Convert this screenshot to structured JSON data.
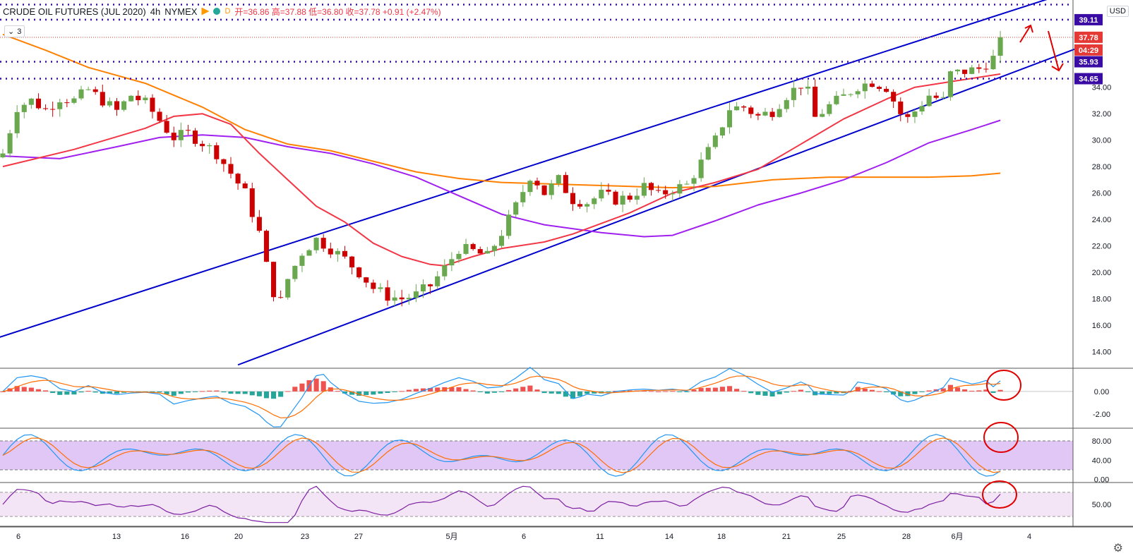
{
  "header": {
    "symbol": "CRUDE OIL FUTURES (JUL 2020)",
    "interval": "4h",
    "exchange": "NYMEX",
    "d_label": "D",
    "ohlc": "开=36.86  高=37.88  低=36.80  收=37.78  +0.91 (+2.47%)"
  },
  "indicator_count": "3",
  "currency": "USD",
  "price_labels": {
    "last_price": "37.78",
    "countdown": "04:29",
    "level_1": "39.11",
    "level_2": "35.93",
    "level_3": "34.65"
  },
  "colors": {
    "up": "#6aa84f",
    "down": "#cc0000",
    "channel": "#0000cc",
    "ma_fast": "#f23645",
    "ma_mid": "#a020f0",
    "ma_slow": "#ff8000",
    "level": "#3a0ca3",
    "annotation": "#e00000"
  },
  "chart_data": [
    {
      "type": "candlestick",
      "title": "CRUDE OIL FUTURES (JUL 2020), 4h, NYMEX",
      "x_tick_labels": [
        "6",
        "13",
        "16",
        "20",
        "23",
        "27",
        "5月",
        "6",
        "11",
        "14",
        "18",
        "21",
        "25",
        "28",
        "6月",
        "4"
      ],
      "y_ticks": [
        14.0,
        16.0,
        18.0,
        20.0,
        22.0,
        24.0,
        26.0,
        28.0,
        30.0,
        32.0,
        34.0
      ],
      "ylim": [
        12.8,
        40.6
      ],
      "close_path": [
        [
          0,
          29.0
        ],
        [
          2,
          32.5
        ],
        [
          4,
          33.0
        ],
        [
          6,
          32.3
        ],
        [
          8,
          33.2
        ],
        [
          10,
          33.0
        ],
        [
          12,
          33.8
        ],
        [
          14,
          33.0
        ],
        [
          16,
          32.2
        ],
        [
          18,
          33.4
        ],
        [
          20,
          32.8
        ],
        [
          22,
          31.5
        ],
        [
          23,
          30.8
        ],
        [
          24,
          30.2
        ],
        [
          26,
          30.5
        ],
        [
          28,
          29.8
        ],
        [
          30,
          29.0
        ],
        [
          32,
          27.5
        ],
        [
          34,
          26.0
        ],
        [
          36,
          23.0
        ],
        [
          37,
          20.5
        ],
        [
          38,
          18.5
        ],
        [
          39,
          17.8
        ],
        [
          40,
          19.5
        ],
        [
          42,
          21.5
        ],
        [
          44,
          22.5
        ],
        [
          46,
          21.8
        ],
        [
          48,
          21.0
        ],
        [
          50,
          20.0
        ],
        [
          52,
          18.8
        ],
        [
          54,
          18.2
        ],
        [
          56,
          18.0
        ],
        [
          58,
          18.3
        ],
        [
          60,
          19.0
        ],
        [
          62,
          20.3
        ],
        [
          64,
          21.8
        ],
        [
          66,
          21.6
        ],
        [
          68,
          21.2
        ],
        [
          70,
          23.0
        ],
        [
          72,
          25.0
        ],
        [
          74,
          27.3
        ],
        [
          75,
          26.8
        ],
        [
          76,
          26.0
        ],
        [
          78,
          27.0
        ],
        [
          80,
          25.5
        ],
        [
          82,
          25.3
        ],
        [
          84,
          25.9
        ],
        [
          86,
          25.5
        ],
        [
          88,
          25.7
        ],
        [
          90,
          26.5
        ],
        [
          92,
          25.8
        ],
        [
          94,
          26.3
        ],
        [
          96,
          26.6
        ],
        [
          98,
          28.3
        ],
        [
          100,
          30.0
        ],
        [
          102,
          32.4
        ],
        [
          104,
          32.5
        ],
        [
          106,
          31.8
        ],
        [
          108,
          32.2
        ],
        [
          110,
          33.4
        ],
        [
          112,
          34.2
        ],
        [
          113,
          33.6
        ],
        [
          114,
          31.7
        ],
        [
          116,
          32.6
        ],
        [
          118,
          33.3
        ],
        [
          120,
          34.1
        ],
        [
          122,
          34.4
        ],
        [
          124,
          34.0
        ],
        [
          126,
          32.0
        ],
        [
          127,
          31.6
        ],
        [
          128,
          32.2
        ],
        [
          130,
          33.4
        ],
        [
          132,
          33.0
        ],
        [
          133,
          35.0
        ],
        [
          135,
          35.2
        ],
        [
          137,
          35.4
        ],
        [
          139,
          36.2
        ],
        [
          140,
          37.8
        ]
      ],
      "ma_fast": [
        [
          0,
          28.0
        ],
        [
          10,
          29.3
        ],
        [
          20,
          30.9
        ],
        [
          24,
          31.8
        ],
        [
          28,
          32.0
        ],
        [
          32,
          31.2
        ],
        [
          36,
          29.0
        ],
        [
          40,
          27.0
        ],
        [
          44,
          25.0
        ],
        [
          48,
          23.8
        ],
        [
          52,
          22.2
        ],
        [
          56,
          21.2
        ],
        [
          60,
          20.6
        ],
        [
          62,
          20.5
        ],
        [
          66,
          21.2
        ],
        [
          70,
          21.8
        ],
        [
          76,
          22.3
        ],
        [
          80,
          22.9
        ],
        [
          88,
          24.5
        ],
        [
          94,
          26.0
        ],
        [
          100,
          26.8
        ],
        [
          106,
          27.8
        ],
        [
          112,
          29.7
        ],
        [
          118,
          31.6
        ],
        [
          124,
          33.1
        ],
        [
          128,
          34.0
        ],
        [
          134,
          34.5
        ],
        [
          140,
          35.0
        ]
      ],
      "ma_mid": [
        [
          0,
          28.8
        ],
        [
          8,
          28.6
        ],
        [
          16,
          29.5
        ],
        [
          22,
          30.2
        ],
        [
          28,
          30.4
        ],
        [
          34,
          30.2
        ],
        [
          40,
          29.5
        ],
        [
          46,
          29.0
        ],
        [
          52,
          28.2
        ],
        [
          58,
          27.2
        ],
        [
          64,
          25.8
        ],
        [
          70,
          24.4
        ],
        [
          76,
          23.6
        ],
        [
          84,
          23.0
        ],
        [
          90,
          22.7
        ],
        [
          94,
          22.8
        ],
        [
          100,
          23.9
        ],
        [
          106,
          25.1
        ],
        [
          112,
          26.0
        ],
        [
          118,
          27.0
        ],
        [
          124,
          28.3
        ],
        [
          130,
          29.8
        ],
        [
          136,
          30.8
        ],
        [
          140,
          31.5
        ]
      ],
      "ma_slow": [
        [
          0,
          38.0
        ],
        [
          6,
          36.8
        ],
        [
          12,
          35.5
        ],
        [
          20,
          34.3
        ],
        [
          28,
          32.5
        ],
        [
          34,
          30.8
        ],
        [
          40,
          29.7
        ],
        [
          46,
          29.2
        ],
        [
          52,
          28.4
        ],
        [
          58,
          27.6
        ],
        [
          64,
          27.1
        ],
        [
          70,
          26.8
        ],
        [
          76,
          26.7
        ],
        [
          82,
          26.6
        ],
        [
          88,
          26.5
        ],
        [
          94,
          26.4
        ],
        [
          100,
          26.5
        ],
        [
          108,
          27.0
        ],
        [
          116,
          27.2
        ],
        [
          124,
          27.2
        ],
        [
          130,
          27.2
        ],
        [
          136,
          27.3
        ],
        [
          140,
          27.5
        ]
      ],
      "channel_upper": [
        [
          -1,
          15.0
        ],
        [
          152,
          41.6
        ]
      ],
      "channel_lower": [
        [
          33,
          13.0
        ],
        [
          152,
          37.2
        ]
      ],
      "levels": [
        39.11,
        35.93,
        34.65
      ]
    },
    {
      "type": "macd",
      "y_ticks": [
        0.0,
        -2.0
      ],
      "ylim": [
        -3.2,
        2.0
      ]
    },
    {
      "type": "stochastic",
      "y_ticks": [
        80.0,
        40.0,
        0.0
      ],
      "bands": [
        20,
        80
      ],
      "ylim": [
        -5,
        105
      ]
    },
    {
      "type": "rsi",
      "y_ticks": [
        50.0
      ],
      "bands": [
        30,
        70
      ],
      "ylim": [
        15,
        85
      ]
    }
  ]
}
